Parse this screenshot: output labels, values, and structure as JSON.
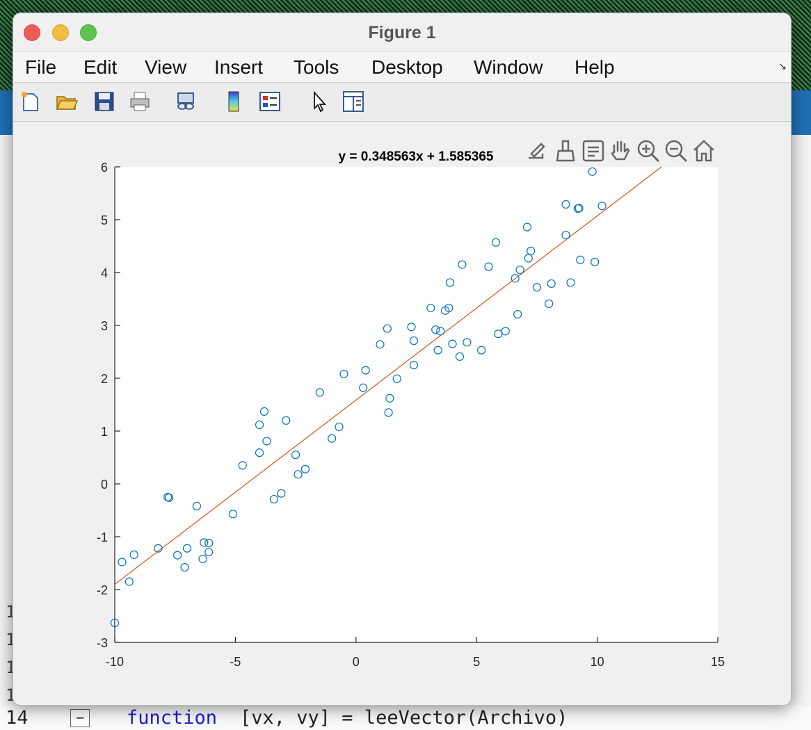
{
  "window": {
    "title": "Figure 1"
  },
  "menu": [
    "File",
    "Edit",
    "View",
    "Insert",
    "Tools",
    "Desktop",
    "Window",
    "Help"
  ],
  "toolbar": {
    "icons": [
      "new-figure-icon",
      "open-file-icon",
      "save-icon",
      "print-icon",
      "link-plot-icon",
      "colorbar-icon",
      "legend-icon",
      "edit-plot-icon",
      "property-inspector-icon"
    ]
  },
  "axes_toolbar": {
    "icons": [
      "export-icon",
      "brush-icon",
      "data-tips-icon",
      "pan-icon",
      "zoom-in-icon",
      "zoom-out-icon",
      "home-icon"
    ]
  },
  "chart_data": {
    "type": "scatter",
    "title": "y = 0.348563x + 1.585365",
    "xlabel": "",
    "ylabel": "",
    "xlim": [
      -10,
      15
    ],
    "ylim": [
      -3,
      6
    ],
    "xticks": [
      "-10",
      "-5",
      "0",
      "5",
      "10",
      "15"
    ],
    "yticks": [
      "-3",
      "-2",
      "-1",
      "0",
      "1",
      "2",
      "3",
      "4",
      "5",
      "6"
    ],
    "fit_line": {
      "slope": 0.348563,
      "intercept": 1.585365,
      "x_range": [
        -10,
        12.67
      ]
    },
    "marker_color": "#0072BD",
    "line_color": "#D95319",
    "points": [
      [
        -10.0,
        -2.63
      ],
      [
        -9.7,
        -1.48
      ],
      [
        -9.4,
        -1.85
      ],
      [
        -9.2,
        -1.34
      ],
      [
        -8.2,
        -1.22
      ],
      [
        -7.8,
        -0.25
      ],
      [
        -7.75,
        -0.26
      ],
      [
        -7.4,
        -1.35
      ],
      [
        -7.1,
        -1.58
      ],
      [
        -7.0,
        -1.22
      ],
      [
        -6.6,
        -0.42
      ],
      [
        -6.35,
        -1.42
      ],
      [
        -6.3,
        -1.11
      ],
      [
        -6.1,
        -1.12
      ],
      [
        -6.1,
        -1.29
      ],
      [
        -5.1,
        -0.57
      ],
      [
        -4.7,
        0.35
      ],
      [
        -4.0,
        0.59
      ],
      [
        -4.0,
        1.12
      ],
      [
        -3.8,
        1.37
      ],
      [
        -3.7,
        0.81
      ],
      [
        -3.4,
        -0.29
      ],
      [
        -3.1,
        -0.18
      ],
      [
        -2.9,
        1.2
      ],
      [
        -2.5,
        0.55
      ],
      [
        -2.4,
        0.18
      ],
      [
        -2.1,
        0.28
      ],
      [
        -1.5,
        1.73
      ],
      [
        -1.0,
        0.86
      ],
      [
        -0.7,
        1.08
      ],
      [
        -0.5,
        2.08
      ],
      [
        0.3,
        1.82
      ],
      [
        0.4,
        2.15
      ],
      [
        1.0,
        2.64
      ],
      [
        1.3,
        2.94
      ],
      [
        1.35,
        1.35
      ],
      [
        1.4,
        1.62
      ],
      [
        1.7,
        1.99
      ],
      [
        2.3,
        2.97
      ],
      [
        2.4,
        2.71
      ],
      [
        2.4,
        2.25
      ],
      [
        3.1,
        3.33
      ],
      [
        3.3,
        2.92
      ],
      [
        3.4,
        2.53
      ],
      [
        3.5,
        2.89
      ],
      [
        3.7,
        3.28
      ],
      [
        3.85,
        3.33
      ],
      [
        3.9,
        3.81
      ],
      [
        4.0,
        2.65
      ],
      [
        4.3,
        2.41
      ],
      [
        4.4,
        4.15
      ],
      [
        4.6,
        2.68
      ],
      [
        5.2,
        2.53
      ],
      [
        5.5,
        4.11
      ],
      [
        5.8,
        4.57
      ],
      [
        5.9,
        2.84
      ],
      [
        6.2,
        2.89
      ],
      [
        6.6,
        3.89
      ],
      [
        6.7,
        3.21
      ],
      [
        6.8,
        4.05
      ],
      [
        7.1,
        4.86
      ],
      [
        7.15,
        4.27
      ],
      [
        7.25,
        4.41
      ],
      [
        7.5,
        3.72
      ],
      [
        8.0,
        3.41
      ],
      [
        8.1,
        3.79
      ],
      [
        8.7,
        5.29
      ],
      [
        8.7,
        4.71
      ],
      [
        8.9,
        3.81
      ],
      [
        9.2,
        5.21
      ],
      [
        9.25,
        5.22
      ],
      [
        9.3,
        4.24
      ],
      [
        9.8,
        5.91
      ],
      [
        9.9,
        4.2
      ],
      [
        10.2,
        5.26
      ]
    ]
  },
  "ide": {
    "line_numbers": [
      "1",
      "1",
      "1",
      "1"
    ],
    "current_line": "14",
    "code_keyword": "function",
    "code_rest": "[vx, vy] = leeVector(Archivo)"
  }
}
